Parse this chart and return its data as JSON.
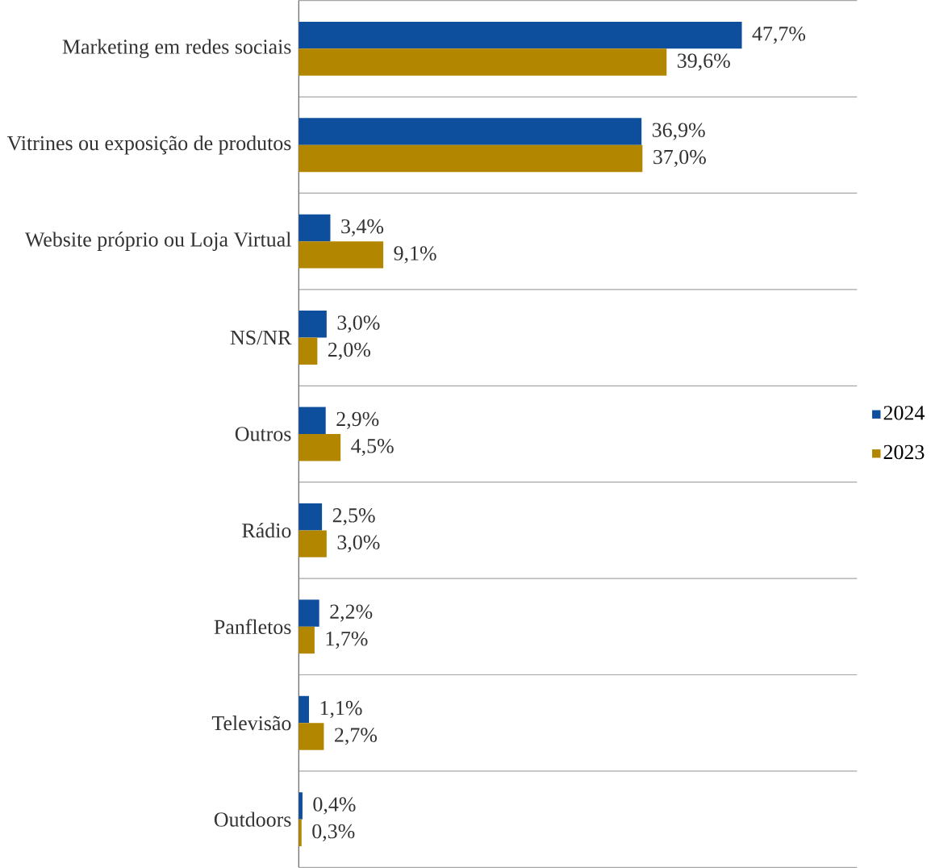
{
  "chart_data": {
    "type": "bar",
    "orientation": "horizontal",
    "categories": [
      "Marketing em redes sociais",
      "Vitrines ou exposição de produtos",
      "Website próprio ou Loja Virtual",
      "NS/NR",
      "Outros",
      "Rádio",
      "Panfletos",
      "Televisão",
      "Outdoors"
    ],
    "series": [
      {
        "name": "2024",
        "color": "#0d4f9c",
        "values": [
          47.7,
          36.9,
          3.4,
          3.0,
          2.9,
          2.5,
          2.2,
          1.1,
          0.4
        ],
        "value_labels": [
          "47,7%",
          "36,9%",
          "3,4%",
          "3,0%",
          "2,9%",
          "2,5%",
          "2,2%",
          "1,1%",
          "0,4%"
        ]
      },
      {
        "name": "2023",
        "color": "#b38600",
        "values": [
          39.6,
          37.0,
          9.1,
          2.0,
          4.5,
          3.0,
          1.7,
          2.7,
          0.3
        ],
        "value_labels": [
          "39,6%",
          "37,0%",
          "9,1%",
          "2,0%",
          "4,5%",
          "3,0%",
          "1,7%",
          "2,7%",
          "0,3%"
        ]
      }
    ],
    "legend": "right",
    "grid": "y"
  }
}
